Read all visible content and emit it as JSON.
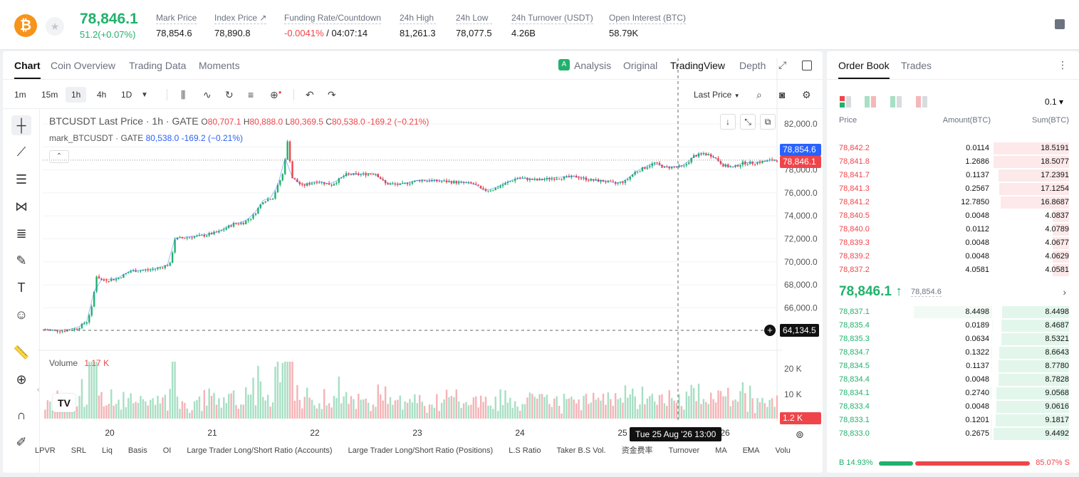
{
  "ticker": {
    "symbol_icon": "bitcoin-icon",
    "last_price": "78,846.1",
    "change": "51.2(+0.07%)",
    "mark_price_label": "Mark Price",
    "mark_price": "78,854.6",
    "index_price_label": "Index Price ↗",
    "index_price": "78,890.8",
    "funding_label": "Funding Rate/Countdown",
    "funding_rate": "-0.0041%",
    "countdown": "/ 04:07:14",
    "high_label": "24h High",
    "high": "81,261.3",
    "low_label": "24h Low",
    "low": "78,077.5",
    "turnover_label": "24h Turnover (USDT)",
    "turnover": "4.26B",
    "oi_label": "Open Interest (BTC)",
    "oi": "58.79K"
  },
  "panel_tabs": [
    "Chart",
    "Coin Overview",
    "Trading Data",
    "Moments"
  ],
  "view_tabs": {
    "analysis": "Analysis",
    "original": "Original",
    "tradingview": "TradingView",
    "depth": "Depth"
  },
  "timeframes": [
    "1m",
    "15m",
    "1h",
    "4h",
    "1D"
  ],
  "price_type": "Last Price",
  "legend": {
    "title": "BTCUSDT Last Price · 1h · GATE",
    "o_label": "O",
    "o": "80,707.1",
    "h_label": "H",
    "h": "80,888.0",
    "l_label": "L",
    "l": "80,369.5",
    "c_label": "C",
    "c": "80,538.0",
    "chg": "-169.2 (−0.21%)",
    "mark_name": "mark_BTCUSDT · GATE",
    "mark_val": "80,538.0",
    "mark_chg": "-169.2 (−0.21%)"
  },
  "volume": {
    "label": "Volume",
    "value": "1.17 K"
  },
  "axis_tags": {
    "mark": "78,854.6",
    "last": "78,846.1",
    "crosshair_price": "64,134.5",
    "volume": "1.2 K",
    "crosshair_time": "Tue 25 Aug '26   13:00"
  },
  "indicators": [
    "LPVR",
    "SRL",
    "Liq",
    "Basis",
    "OI",
    "Large Trader Long/Short Ratio (Accounts)",
    "Large Trader Long/Short Ratio (Positions)",
    "L.S Ratio",
    "Taker B.S Vol.",
    "资金费率",
    "Turnover",
    "MA",
    "EMA",
    "Volu"
  ],
  "chart_data": {
    "type": "candlestick",
    "price_axis": [
      82000,
      80000,
      78000,
      76000,
      74000,
      72000,
      70000,
      68000,
      66000
    ],
    "price_axis_labels": [
      "82,000.0",
      "80,000.0",
      "78,000.0",
      "76,000.0",
      "74,000.0",
      "72,000.0",
      "70,000.0",
      "68,000.0",
      "66,000.0"
    ],
    "volume_axis_labels": [
      "20 K",
      "10 K"
    ],
    "x_labels": [
      "20",
      "21",
      "22",
      "23",
      "24",
      "25",
      "26"
    ],
    "close_path": [
      [
        0,
        64100
      ],
      [
        8,
        64000
      ],
      [
        14,
        64200
      ],
      [
        18,
        64800
      ],
      [
        20,
        66000
      ],
      [
        22,
        68800
      ],
      [
        24,
        68400
      ],
      [
        30,
        68500
      ],
      [
        36,
        69200
      ],
      [
        44,
        69300
      ],
      [
        48,
        69500
      ],
      [
        52,
        69800
      ],
      [
        54,
        72000
      ],
      [
        58,
        72100
      ],
      [
        66,
        72300
      ],
      [
        72,
        72600
      ],
      [
        78,
        73300
      ],
      [
        82,
        73400
      ],
      [
        86,
        74000
      ],
      [
        90,
        75300
      ],
      [
        94,
        75600
      ],
      [
        98,
        77600
      ],
      [
        100,
        80400
      ],
      [
        102,
        77300
      ],
      [
        106,
        76600
      ],
      [
        112,
        77000
      ],
      [
        118,
        76700
      ],
      [
        124,
        77600
      ],
      [
        130,
        77600
      ],
      [
        136,
        77700
      ],
      [
        140,
        76800
      ],
      [
        146,
        76700
      ],
      [
        154,
        77100
      ],
      [
        164,
        77000
      ],
      [
        170,
        76900
      ],
      [
        176,
        76800
      ],
      [
        180,
        76200
      ],
      [
        184,
        76300
      ],
      [
        188,
        76700
      ],
      [
        194,
        77300
      ],
      [
        202,
        77100
      ],
      [
        210,
        77300
      ],
      [
        218,
        77400
      ],
      [
        224,
        77100
      ],
      [
        230,
        77000
      ],
      [
        234,
        76800
      ],
      [
        238,
        77000
      ],
      [
        242,
        77800
      ],
      [
        246,
        78200
      ],
      [
        250,
        78600
      ],
      [
        254,
        78200
      ],
      [
        262,
        78300
      ],
      [
        266,
        79200
      ],
      [
        270,
        79400
      ],
      [
        274,
        79200
      ],
      [
        278,
        78400
      ],
      [
        282,
        78200
      ],
      [
        286,
        78600
      ],
      [
        290,
        78600
      ],
      [
        294,
        78700
      ],
      [
        298,
        78846
      ]
    ],
    "last_price": 78846.1,
    "mark_price": 78854.6
  },
  "orderbook": {
    "tabs": [
      "Order Book",
      "Trades"
    ],
    "precision": "0.1 ▾",
    "headers": {
      "price": "Price",
      "amount": "Amount(BTC)",
      "sum": "Sum(BTC)"
    },
    "asks": [
      {
        "price": "78,842.2",
        "amount": "0.0114",
        "sum": "18.5191",
        "depth": 1.0
      },
      {
        "price": "78,841.8",
        "amount": "1.2686",
        "sum": "18.5077",
        "depth": 1.0
      },
      {
        "price": "78,841.7",
        "amount": "0.1137",
        "sum": "17.2391",
        "depth": 0.93
      },
      {
        "price": "78,841.3",
        "amount": "0.2567",
        "sum": "17.1254",
        "depth": 0.92
      },
      {
        "price": "78,841.2",
        "amount": "12.7850",
        "sum": "16.8687",
        "depth": 0.91
      },
      {
        "price": "78,840.5",
        "amount": "0.0048",
        "sum": "4.0837",
        "depth": 0.22
      },
      {
        "price": "78,840.0",
        "amount": "0.0112",
        "sum": "4.0789",
        "depth": 0.22
      },
      {
        "price": "78,839.3",
        "amount": "0.0048",
        "sum": "4.0677",
        "depth": 0.22
      },
      {
        "price": "78,839.2",
        "amount": "0.0048",
        "sum": "4.0629",
        "depth": 0.22
      },
      {
        "price": "78,837.2",
        "amount": "4.0581",
        "sum": "4.0581",
        "depth": 0.22
      }
    ],
    "mid": {
      "price": "78,846.1 ↑",
      "mark": "78,854.6"
    },
    "bids": [
      {
        "price": "78,837.1",
        "amount": "8.4498",
        "sum": "8.4498",
        "depth": 0.89
      },
      {
        "price": "78,835.4",
        "amount": "0.0189",
        "sum": "8.4687",
        "depth": 0.9
      },
      {
        "price": "78,835.3",
        "amount": "0.0634",
        "sum": "8.5321",
        "depth": 0.9
      },
      {
        "price": "78,834.7",
        "amount": "0.1322",
        "sum": "8.6643",
        "depth": 0.92
      },
      {
        "price": "78,834.5",
        "amount": "0.1137",
        "sum": "8.7780",
        "depth": 0.93
      },
      {
        "price": "78,834.4",
        "amount": "0.0048",
        "sum": "8.7828",
        "depth": 0.93
      },
      {
        "price": "78,834.1",
        "amount": "0.2740",
        "sum": "9.0568",
        "depth": 0.96
      },
      {
        "price": "78,833.4",
        "amount": "0.0048",
        "sum": "9.0616",
        "depth": 0.96
      },
      {
        "price": "78,833.1",
        "amount": "0.1201",
        "sum": "9.1817",
        "depth": 0.97
      },
      {
        "price": "78,833.0",
        "amount": "0.2675",
        "sum": "9.4492",
        "depth": 1.0
      }
    ],
    "buy_ratio": "B 14.93%",
    "sell_ratio": "85.07% S",
    "buy_fraction": 0.1493
  },
  "colors": {
    "up": "#20b26c",
    "down": "#ef454a",
    "mark": "#2962ff"
  }
}
